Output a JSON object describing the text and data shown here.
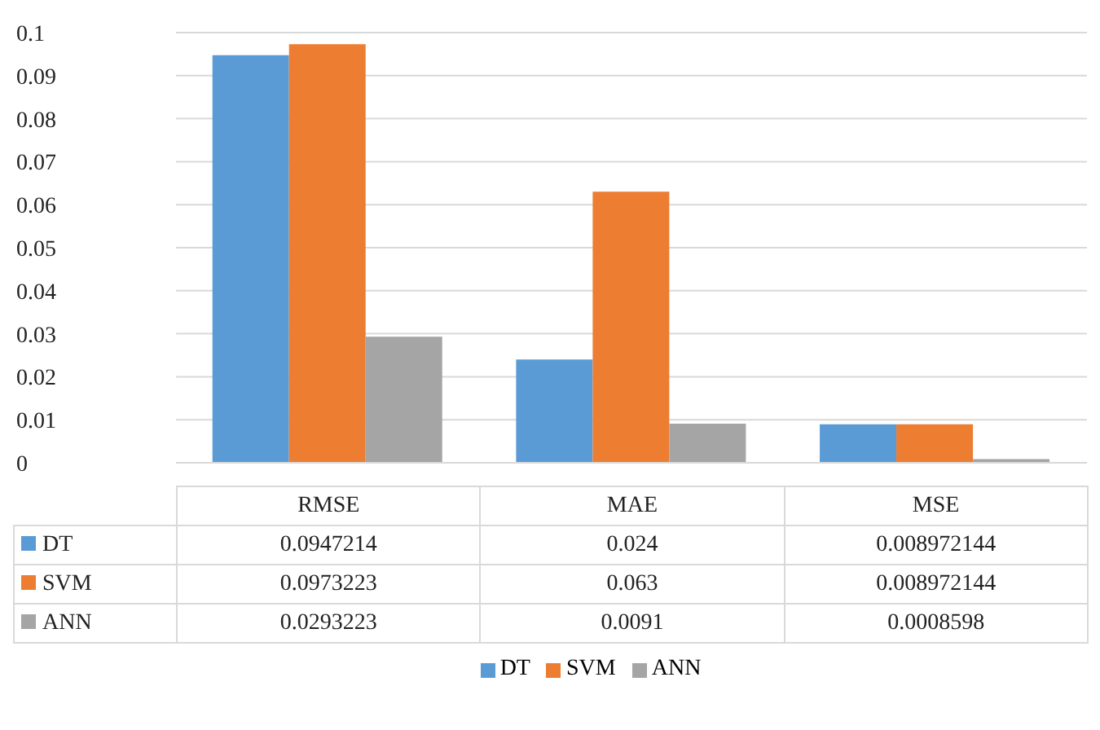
{
  "chart_data": {
    "type": "bar",
    "categories": [
      "RMSE",
      "MAE",
      "MSE"
    ],
    "series": [
      {
        "name": "DT",
        "color": "#5b9bd5",
        "values": [
          0.0947214,
          0.024,
          0.008972144
        ]
      },
      {
        "name": "SVM",
        "color": "#ed7d31",
        "values": [
          0.0973223,
          0.063,
          0.008972144
        ]
      },
      {
        "name": "ANN",
        "color": "#a5a5a5",
        "values": [
          0.0293223,
          0.0091,
          0.0008598
        ]
      }
    ],
    "ylim": [
      0,
      0.1
    ],
    "yticks": [
      0,
      0.01,
      0.02,
      0.03,
      0.04,
      0.05,
      0.06,
      0.07,
      0.08,
      0.09,
      0.1
    ],
    "grid": "y",
    "legend": "bottom",
    "data_labels": true
  }
}
